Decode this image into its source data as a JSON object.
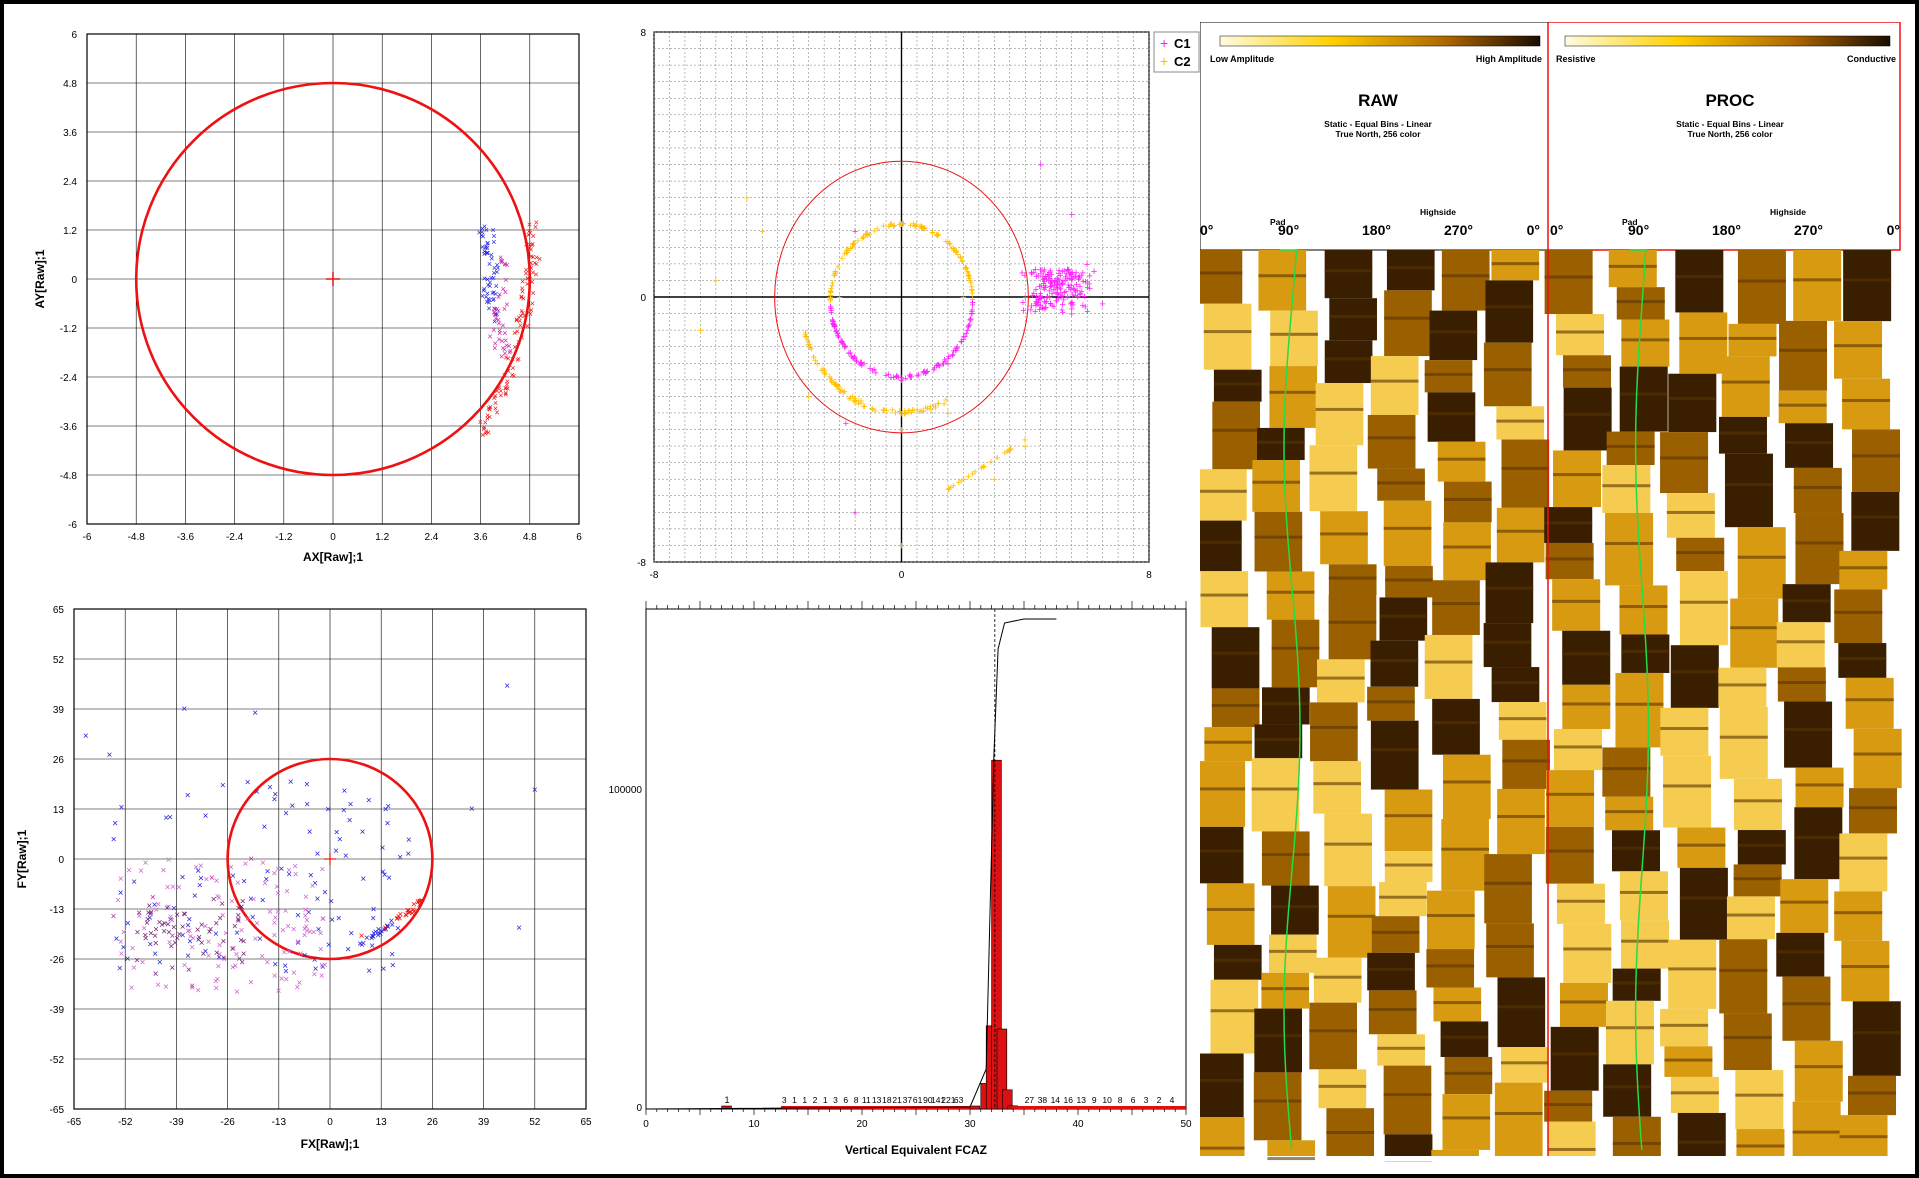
{
  "colors": {
    "circle": "#ee1111",
    "c1": "#ff22ff",
    "c2": "#ffc000",
    "blue": "#2222dd",
    "magenta": "#cc22aa",
    "bar": "#dd1111"
  },
  "chart_data": [
    {
      "type": "scatter",
      "xlabel": "AX[Raw];1",
      "ylabel": "AY[Raw];1",
      "xlim": [
        -6,
        6
      ],
      "ylim": [
        -6,
        6
      ],
      "xticks": [
        "-6",
        "-4.8",
        "-3.6",
        "-2.4",
        "-1.2",
        "0",
        "1.2",
        "2.4",
        "3.6",
        "4.8",
        "6"
      ],
      "yticks": [
        "6",
        "4.8",
        "3.6",
        "2.4",
        "1.2",
        "0",
        "-1.2",
        "-2.4",
        "-3.6",
        "-4.8",
        "-6"
      ],
      "grid": true,
      "reference_circle": {
        "center": [
          0,
          0
        ],
        "radius": 4.8
      },
      "series": [
        {
          "color": "red",
          "points": [
            [
              4.8,
              1.3
            ],
            [
              4.9,
              0.6
            ],
            [
              4.8,
              0.0
            ],
            [
              4.7,
              -0.8
            ],
            [
              4.5,
              -1.6
            ],
            [
              4.2,
              -2.6
            ],
            [
              3.9,
              -3.2
            ],
            [
              3.6,
              -3.8
            ]
          ]
        },
        {
          "color": "blue",
          "points": [
            [
              3.7,
              1.3
            ],
            [
              3.8,
              0.8
            ],
            [
              3.9,
              0.2
            ],
            [
              3.8,
              -0.4
            ],
            [
              3.9,
              -1.0
            ]
          ]
        },
        {
          "color": "magenta",
          "points": [
            [
              4.2,
              0.6
            ],
            [
              4.1,
              -0.6
            ],
            [
              4.0,
              -1.4
            ],
            [
              4.2,
              -1.8
            ]
          ]
        }
      ]
    },
    {
      "type": "scatter",
      "xlim": [
        -8,
        8
      ],
      "ylim": [
        -8,
        8
      ],
      "xticks": [
        "-8",
        "0",
        "8"
      ],
      "yticks": [
        "8",
        "0",
        "-8"
      ],
      "grid": true,
      "legend": [
        "C1",
        "C2"
      ],
      "legend_position": "top-right",
      "series": [
        {
          "name": "C1",
          "description": "inner circle lower half and cluster near x=4-6",
          "points": [
            [
              -1.5,
              2.0
            ],
            [
              0.0,
              -2.5
            ],
            [
              1.5,
              -2.0
            ],
            [
              4.0,
              0.0
            ],
            [
              5.0,
              0.3
            ],
            [
              5.5,
              -0.5
            ],
            [
              6.0,
              1.0
            ],
            [
              6.5,
              -0.2
            ],
            [
              4.5,
              4.0
            ],
            [
              5.5,
              2.5
            ],
            [
              -1.8,
              -3.8
            ],
            [
              -1.5,
              -6.5
            ]
          ]
        },
        {
          "name": "C2",
          "description": "inner circle upper half, lower arc of outer circle",
          "points": [
            [
              0.0,
              2.2
            ],
            [
              -2.0,
              0.0
            ],
            [
              2.0,
              0.0
            ],
            [
              -3.0,
              -3.0
            ],
            [
              0.0,
              -4.0
            ],
            [
              1.5,
              -3.5
            ],
            [
              3.0,
              -5.5
            ],
            [
              4.0,
              -4.5
            ],
            [
              -6.0,
              0.5
            ],
            [
              -6.5,
              -1.0
            ],
            [
              -4.5,
              2.0
            ],
            [
              -5.0,
              3.0
            ],
            [
              0.0,
              -7.5
            ]
          ]
        }
      ],
      "reference_circle": {
        "center": [
          0,
          0
        ],
        "radius": 4.1
      }
    },
    {
      "type": "scatter",
      "xlabel": "FX[Raw];1",
      "ylabel": "FY[Raw];1",
      "xlim": [
        -65,
        65
      ],
      "ylim": [
        -65,
        65
      ],
      "xticks": [
        "-65",
        "-52",
        "-39",
        "-26",
        "-13",
        "0",
        "13",
        "26",
        "39",
        "52",
        "65"
      ],
      "yticks": [
        "65",
        "52",
        "39",
        "26",
        "13",
        "0",
        "-13",
        "-26",
        "-39",
        "-52",
        "-65"
      ],
      "grid": true,
      "reference_circle": {
        "center": [
          0,
          0
        ],
        "radius": 26
      },
      "series": [
        {
          "color": "blue",
          "points": [
            [
              -37,
              39
            ],
            [
              45,
              45
            ],
            [
              -19,
              38
            ],
            [
              52,
              18
            ],
            [
              -56,
              27
            ],
            [
              -62,
              32
            ],
            [
              36,
              13
            ],
            [
              48,
              -18
            ],
            [
              -10,
              20
            ],
            [
              5,
              10
            ],
            [
              15,
              -5
            ],
            [
              20,
              5
            ]
          ]
        },
        {
          "color": "magenta",
          "points": [
            [
              -45,
              -10
            ],
            [
              -40,
              -20
            ],
            [
              -30,
              -5
            ],
            [
              -20,
              0
            ],
            [
              -35,
              -33
            ],
            [
              -55,
              -15
            ]
          ]
        },
        {
          "color": "red-blue arc",
          "points": [
            [
              8,
              -20
            ],
            [
              14,
              -18
            ],
            [
              20,
              -14
            ],
            [
              23,
              -11
            ]
          ]
        }
      ]
    },
    {
      "type": "bar",
      "xlabel": "Vertical Equivalent FCAZ",
      "xlim": [
        0,
        50
      ],
      "ylim": [
        0,
        150000
      ],
      "xticks": [
        "0",
        "10",
        "20",
        "30",
        "40",
        "50"
      ],
      "yticks": [
        "100000",
        "0"
      ],
      "count_labels": [
        "1",
        "3",
        "1",
        "1",
        "2",
        "1",
        "3",
        "6",
        "8",
        "11",
        "13",
        "18",
        "21",
        "37",
        "61",
        "90",
        "141",
        "221",
        "63",
        "27",
        "38",
        "14",
        "16",
        "13",
        "9",
        "10",
        "8",
        "6",
        "3",
        "2",
        "4"
      ],
      "bins": [
        {
          "x": 7.5,
          "count": 1
        },
        {
          "x": 30.5,
          "count": 500
        },
        {
          "x": 31.5,
          "count": 8000
        },
        {
          "x": 32.0,
          "count": 26000
        },
        {
          "x": 32.5,
          "count": 109000
        },
        {
          "x": 33.0,
          "count": 25000
        },
        {
          "x": 33.5,
          "count": 6000
        },
        {
          "x": 34.0,
          "count": 1000
        }
      ],
      "cumulative_line": true
    }
  ],
  "image_log": {
    "raw": {
      "title": "RAW",
      "scale_left": "Low Amplitude",
      "scale_right": "High Amplitude",
      "desc_line1": "Static - Equal Bins - Linear",
      "desc_line2": "True North, 256 color",
      "highside_label": "Highside",
      "pad_label": "Pad",
      "az_labels": [
        "0°",
        "90°",
        "180°",
        "270°",
        "0°"
      ]
    },
    "proc": {
      "title": "PROC",
      "scale_left": "Resistive",
      "scale_right": "Conductive",
      "desc_line1": "Static - Equal Bins - Linear",
      "desc_line2": "True North, 256 color",
      "highside_label": "Highside",
      "pad_label": "Pad",
      "az_labels": [
        "0°",
        "90°",
        "180°",
        "270°",
        "0°"
      ]
    }
  }
}
